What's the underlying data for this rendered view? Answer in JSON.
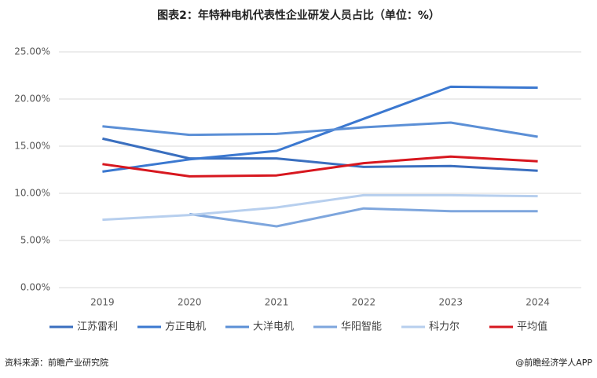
{
  "chart_data": {
    "type": "line",
    "title": "图表2：年特种电机代表性企业研发人员占比（单位：%）",
    "categories": [
      "2019",
      "2020",
      "2021",
      "2022",
      "2023",
      "2024"
    ],
    "series": [
      {
        "name": "江苏雷利",
        "color": "#3a6fbf",
        "values": [
          15.8,
          13.7,
          13.7,
          12.8,
          12.9,
          12.4
        ]
      },
      {
        "name": "方正电机",
        "color": "#3b78d0",
        "values": [
          12.3,
          13.6,
          14.5,
          17.9,
          21.3,
          21.2
        ]
      },
      {
        "name": "大洋电机",
        "color": "#5b8fd6",
        "values": [
          17.1,
          16.2,
          16.3,
          17.0,
          17.5,
          16.0
        ]
      },
      {
        "name": "华阳智能",
        "color": "#7ea6dd",
        "values": [
          null,
          7.8,
          6.5,
          8.4,
          8.1,
          8.1
        ]
      },
      {
        "name": "科力尔",
        "color": "#b7cfee",
        "values": [
          7.2,
          7.7,
          8.5,
          9.8,
          9.8,
          9.7
        ]
      },
      {
        "name": "平均值",
        "color": "#d7171f",
        "values": [
          13.1,
          11.8,
          11.9,
          13.2,
          13.9,
          13.4
        ]
      }
    ],
    "ylim": [
      0,
      25
    ],
    "yticks": [
      {
        "value": 0,
        "label": "0.00%"
      },
      {
        "value": 5,
        "label": "5.00%"
      },
      {
        "value": 10,
        "label": "10.00%"
      },
      {
        "value": 15,
        "label": "15.00%"
      },
      {
        "value": 20,
        "label": "20.00%"
      },
      {
        "value": 25,
        "label": "25.00%"
      }
    ],
    "grid": true,
    "source": "资料来源：前瞻产业研究院",
    "credit": "@前瞻经济学人APP"
  }
}
